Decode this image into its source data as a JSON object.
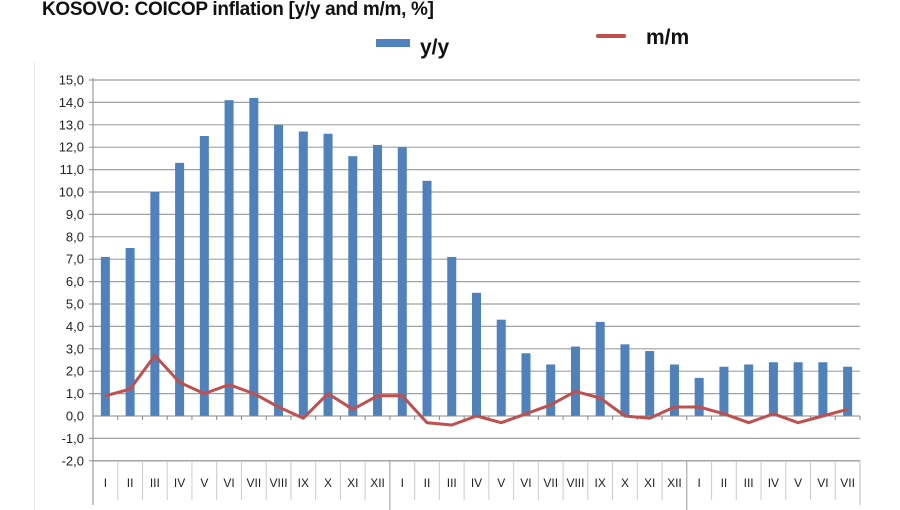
{
  "title": "KOSOVO: COICOP inflation [y/y and m/m, %]",
  "legend": {
    "bar_label": "y/y",
    "line_label": "m/m"
  },
  "colors": {
    "bar": "#4f81bd",
    "line": "#c0504d",
    "grid": "#a0a0a0"
  },
  "chart_data": {
    "type": "bar",
    "title": "KOSOVO: COICOP inflation [y/y and m/m, %]",
    "xlabel": "",
    "ylabel": "",
    "ylim": [
      -2.0,
      15.0
    ],
    "ytick_step": 1.0,
    "yticks": [
      "15,0",
      "14,0",
      "13,0",
      "12,0",
      "11,0",
      "10,0",
      "9,0",
      "8,0",
      "7,0",
      "6,0",
      "5,0",
      "4,0",
      "3,0",
      "2,0",
      "1,0",
      "0,0",
      "-1,0",
      "-2,0"
    ],
    "grid": true,
    "legend_position": "top",
    "categories": [
      "I",
      "II",
      "III",
      "IV",
      "V",
      "VI",
      "VII",
      "VIII",
      "IX",
      "X",
      "XI",
      "XII",
      "I",
      "II",
      "III",
      "IV",
      "V",
      "VI",
      "VII",
      "VIII",
      "IX",
      "X",
      "XI",
      "XII",
      "I",
      "II",
      "III",
      "IV",
      "V",
      "VI",
      "VII"
    ],
    "series": [
      {
        "name": "y/y",
        "type": "bar",
        "values": [
          7.1,
          7.5,
          10.0,
          11.3,
          12.5,
          14.1,
          14.2,
          13.0,
          12.7,
          12.6,
          11.6,
          12.1,
          12.0,
          10.5,
          7.1,
          5.5,
          4.3,
          2.8,
          2.3,
          3.1,
          4.2,
          3.2,
          2.9,
          2.3,
          1.7,
          2.2,
          2.3,
          2.4,
          2.4,
          2.4,
          2.2
        ]
      },
      {
        "name": "m/m",
        "type": "line",
        "values": [
          0.9,
          1.2,
          2.7,
          1.5,
          1.0,
          1.4,
          1.0,
          0.4,
          -0.1,
          1.0,
          0.3,
          0.9,
          0.9,
          -0.3,
          -0.4,
          0.0,
          -0.3,
          0.1,
          0.5,
          1.1,
          0.8,
          0.0,
          -0.1,
          0.4,
          0.4,
          0.1,
          -0.3,
          0.1,
          -0.3,
          0.0,
          0.3
        ]
      }
    ],
    "year_group_boundaries": [
      12,
      24
    ]
  }
}
